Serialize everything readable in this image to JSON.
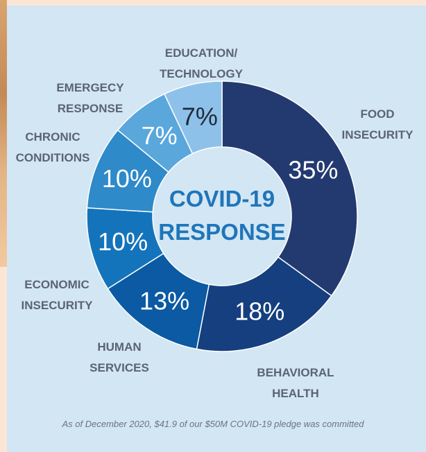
{
  "chart_data": {
    "type": "pie",
    "center_title": [
      "COVID-19",
      "RESPONSE"
    ],
    "slices": [
      {
        "label": [
          "FOOD",
          "INSECURITY"
        ],
        "value": 35,
        "value_label": "35%",
        "color": "#233a70",
        "text_color": "#ffffff"
      },
      {
        "label": [
          "BEHAVIORAL",
          "HEALTH"
        ],
        "value": 18,
        "value_label": "18%",
        "color": "#153f7f",
        "text_color": "#ffffff"
      },
      {
        "label": [
          "HUMAN",
          "SERVICES"
        ],
        "value": 13,
        "value_label": "13%",
        "color": "#0b5aa3",
        "text_color": "#ffffff"
      },
      {
        "label": [
          "ECONOMIC",
          "INSECURITY"
        ],
        "value": 10,
        "value_label": "10%",
        "color": "#1474bb",
        "text_color": "#ffffff"
      },
      {
        "label": [
          "CHRONIC",
          "CONDITIONS"
        ],
        "value": 10,
        "value_label": "10%",
        "color": "#2e8ac9",
        "text_color": "#ffffff"
      },
      {
        "label": [
          "EMERGECY",
          "RESPONSE"
        ],
        "value": 7,
        "value_label": "7%",
        "color": "#5aa7dc",
        "text_color": "#ffffff"
      },
      {
        "label": [
          "EDUCATION/",
          "TECHNOLOGY"
        ],
        "value": 7,
        "value_label": "7%",
        "color": "#8ec1ea",
        "text_color": "#1f2a3a"
      }
    ]
  },
  "footnote": "As of December 2020, $41.9 of our $50M COVID-19 pledge was committed"
}
